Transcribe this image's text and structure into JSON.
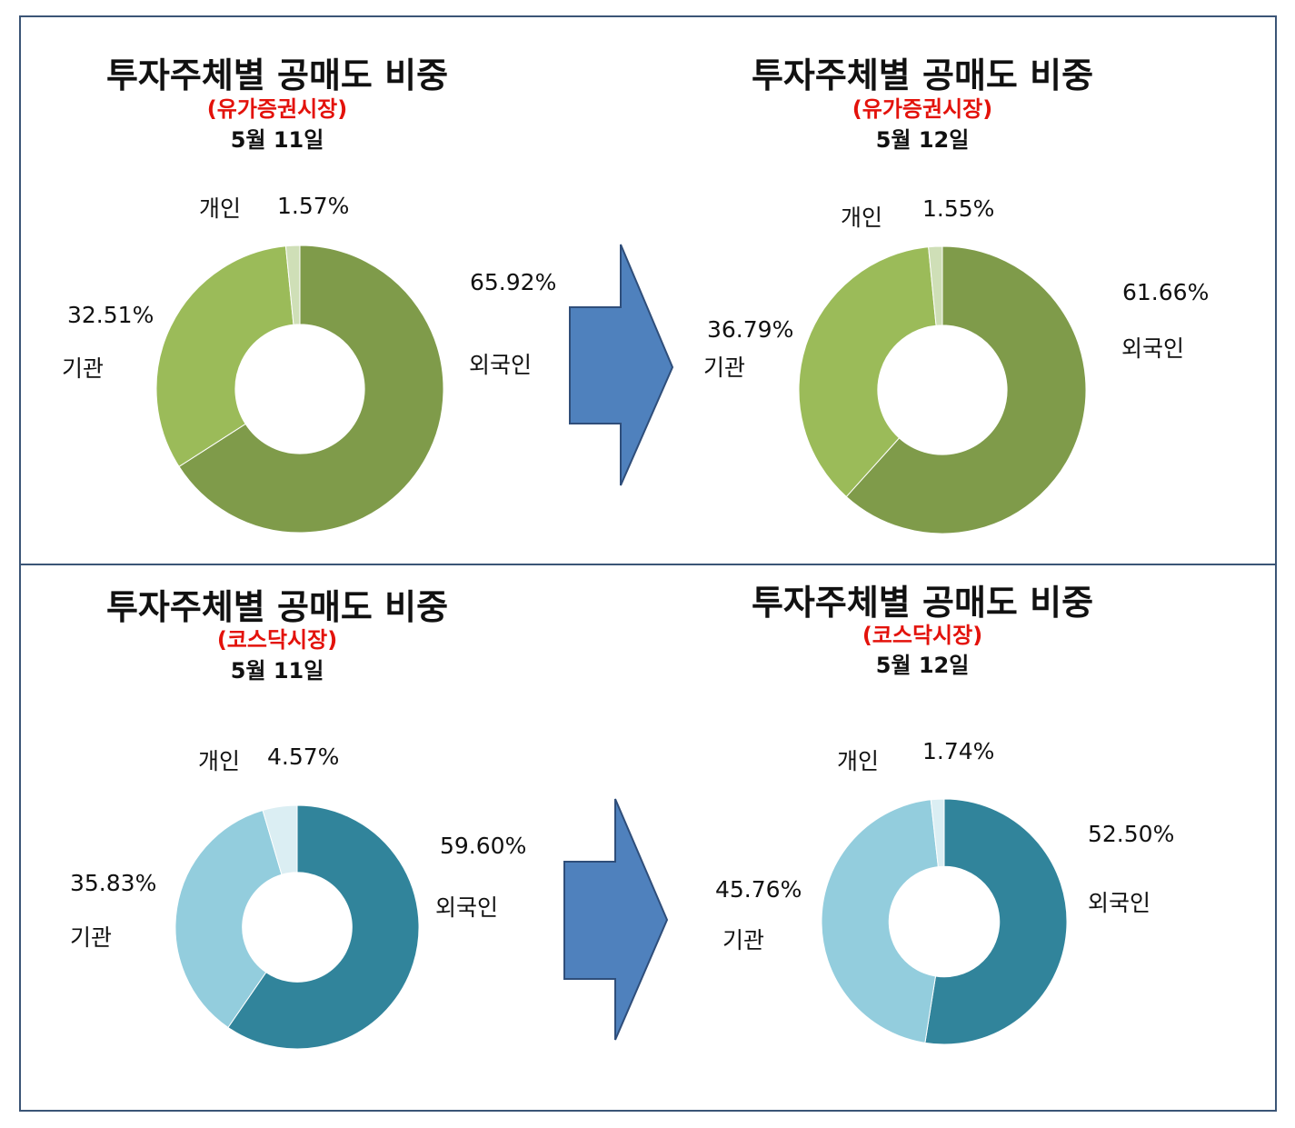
{
  "colors": {
    "border": "#3b5576",
    "title_red": "#e3120b",
    "arrow_fill": "#4f81bd",
    "arrow_stroke": "#2f4e7a",
    "securities": {
      "외국인": "#7f9b4a",
      "기관": "#9bbb59",
      "개인": "#cfdfb7"
    },
    "kosdaq": {
      "외국인": "#31849b",
      "기관": "#93cddd",
      "개인": "#dbeef3"
    }
  },
  "panels": [
    {
      "title": "투자주체별 공매도 비중",
      "market": "(유가증권시장)",
      "date": "5월 11일"
    },
    {
      "title": "투자주체별 공매도 비중",
      "market": "(유가증권시장)",
      "date": "5월 12일"
    },
    {
      "title": "투자주체별 공매도 비중",
      "market": "(코스닥시장)",
      "date": "5월 11일"
    },
    {
      "title": "투자주체별 공매도 비중",
      "market": "(코스닥시장)",
      "date": "5월 12일"
    }
  ],
  "chart_data": [
    {
      "type": "pie",
      "variant": "donut",
      "palette": "securities",
      "categories": [
        "외국인",
        "기관",
        "개인"
      ],
      "values": [
        65.92,
        32.51,
        1.57
      ],
      "value_labels": [
        "65.92%",
        "32.51%",
        "1.57%"
      ]
    },
    {
      "type": "pie",
      "variant": "donut",
      "palette": "securities",
      "categories": [
        "외국인",
        "기관",
        "개인"
      ],
      "values": [
        61.66,
        36.79,
        1.55
      ],
      "value_labels": [
        "61.66%",
        "36.79%",
        "1.55%"
      ]
    },
    {
      "type": "pie",
      "variant": "donut",
      "palette": "kosdaq",
      "categories": [
        "외국인",
        "기관",
        "개인"
      ],
      "values": [
        59.6,
        35.83,
        4.57
      ],
      "value_labels": [
        "59.60%",
        "35.83%",
        "4.57%"
      ]
    },
    {
      "type": "pie",
      "variant": "donut",
      "palette": "kosdaq",
      "categories": [
        "외국인",
        "기관",
        "개인"
      ],
      "values": [
        52.5,
        45.76,
        1.74
      ],
      "value_labels": [
        "52.50%",
        "45.76%",
        "1.74%"
      ]
    }
  ]
}
